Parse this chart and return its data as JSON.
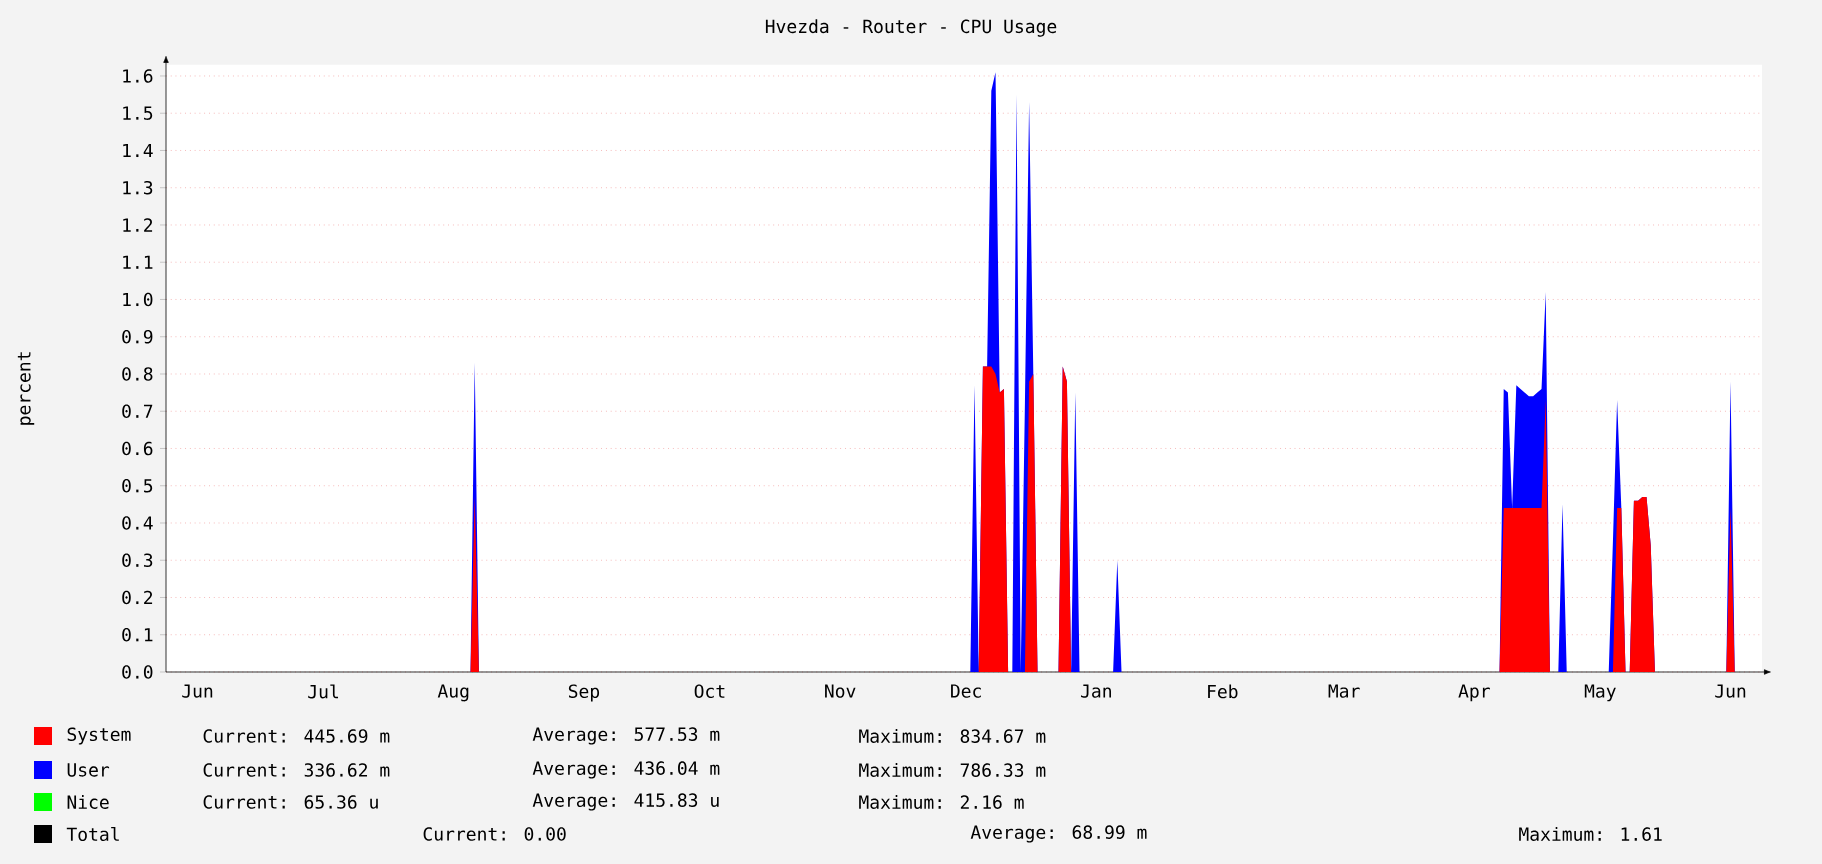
{
  "chart_data": {
    "type": "area",
    "title": "Hvezda - Router - CPU Usage",
    "ylabel": "percent",
    "categories": [
      null,
      null,
      null,
      null,
      null,
      null,
      null,
      "Jun",
      null,
      null,
      null,
      null,
      null,
      null,
      null,
      null,
      null,
      null,
      null,
      null,
      null,
      null,
      null,
      null,
      null,
      null,
      null,
      null,
      null,
      null,
      null,
      null,
      null,
      null,
      null,
      null,
      null,
      "Jul",
      null,
      null,
      null,
      null,
      null,
      null,
      null,
      null,
      null,
      null,
      null,
      null,
      null,
      null,
      null,
      null,
      null,
      null,
      null,
      null,
      null,
      null,
      null,
      null,
      null,
      null,
      null,
      null,
      null,
      null,
      "Aug",
      null,
      null,
      null,
      null,
      null,
      null,
      null,
      null,
      null,
      null,
      null,
      null,
      null,
      null,
      null,
      null,
      null,
      null,
      null,
      null,
      null,
      null,
      null,
      null,
      null,
      null,
      null,
      null,
      null,
      null,
      "Sep",
      null,
      null,
      null,
      null,
      null,
      null,
      null,
      null,
      null,
      null,
      null,
      null,
      null,
      null,
      null,
      null,
      null,
      null,
      null,
      null,
      null,
      null,
      null,
      null,
      null,
      null,
      null,
      null,
      null,
      "Oct",
      null,
      null,
      null,
      null,
      null,
      null,
      null,
      null,
      null,
      null,
      null,
      null,
      null,
      null,
      null,
      null,
      null,
      null,
      null,
      null,
      null,
      null,
      null,
      null,
      null,
      null,
      null,
      null,
      null,
      null,
      "Nov",
      null,
      null,
      null,
      null,
      null,
      null,
      null,
      null,
      null,
      null,
      null,
      null,
      null,
      null,
      null,
      null,
      null,
      null,
      null,
      null,
      null,
      null,
      null,
      null,
      null,
      null,
      null,
      null,
      null,
      "Dec",
      null,
      null,
      null,
      null,
      null,
      null,
      null,
      null,
      null,
      null,
      null,
      null,
      null,
      null,
      null,
      null,
      null,
      null,
      null,
      null,
      null,
      null,
      null,
      null,
      null,
      null,
      null,
      null,
      null,
      null,
      "Jan",
      null,
      null,
      null,
      null,
      null,
      null,
      null,
      null,
      null,
      null,
      null,
      null,
      null,
      null,
      null,
      null,
      null,
      null,
      null,
      null,
      null,
      null,
      null,
      null,
      null,
      null,
      null,
      null,
      null,
      "Feb",
      null,
      null,
      null,
      null,
      null,
      null,
      null,
      null,
      null,
      null,
      null,
      null,
      null,
      null,
      null,
      null,
      null,
      null,
      null,
      null,
      null,
      null,
      null,
      null,
      null,
      null,
      null,
      null,
      "Mar",
      null,
      null,
      null,
      null,
      null,
      null,
      null,
      null,
      null,
      null,
      null,
      null,
      null,
      null,
      null,
      null,
      null,
      null,
      null,
      null,
      null,
      null,
      null,
      null,
      null,
      null,
      null,
      null,
      null,
      null,
      "Apr",
      null,
      null,
      null,
      null,
      null,
      null,
      null,
      null,
      null,
      null,
      null,
      null,
      null,
      null,
      null,
      null,
      null,
      null,
      null,
      null,
      null,
      null,
      null,
      null,
      null,
      null,
      null,
      null,
      null,
      "May",
      null,
      null,
      null,
      null,
      null,
      null,
      null,
      null,
      null,
      null,
      null,
      null,
      null,
      null,
      null,
      null,
      null,
      null,
      null,
      null,
      null,
      null,
      null,
      null,
      null,
      null,
      null,
      null,
      null,
      null,
      "Jun",
      null,
      null,
      null,
      null,
      null,
      null,
      null
    ],
    "series": [
      {
        "name": "System",
        "color": "#ff0000",
        "values": [
          0,
          0,
          0,
          0,
          0,
          0,
          0,
          0,
          0,
          0,
          0,
          0,
          0,
          0,
          0,
          0,
          0,
          0,
          0,
          0,
          0,
          0,
          0,
          0,
          0,
          0,
          0,
          0,
          0,
          0,
          0,
          0,
          0,
          0,
          0,
          0,
          0,
          0,
          0,
          0,
          0,
          0,
          0,
          0,
          0,
          0,
          0,
          0,
          0,
          0,
          0,
          0,
          0,
          0,
          0,
          0,
          0,
          0,
          0,
          0,
          0,
          0,
          0,
          0,
          0,
          0,
          0,
          0,
          0,
          0,
          0,
          0,
          0,
          0.47,
          0,
          0,
          0,
          0,
          0,
          0,
          0,
          0,
          0,
          0,
          0,
          0,
          0,
          0,
          0,
          0,
          0,
          0,
          0,
          0,
          0,
          0,
          0,
          0,
          0,
          0,
          0,
          0,
          0,
          0,
          0,
          0,
          0,
          0,
          0,
          0,
          0,
          0,
          0,
          0,
          0,
          0,
          0,
          0,
          0,
          0,
          0,
          0,
          0,
          0,
          0,
          0,
          0,
          0,
          0,
          0,
          0,
          0,
          0,
          0,
          0,
          0,
          0,
          0,
          0,
          0,
          0,
          0,
          0,
          0,
          0,
          0,
          0,
          0,
          0,
          0,
          0,
          0,
          0,
          0,
          0,
          0,
          0,
          0,
          0,
          0,
          0,
          0,
          0,
          0,
          0,
          0,
          0,
          0,
          0,
          0,
          0,
          0,
          0,
          0,
          0,
          0,
          0,
          0,
          0,
          0,
          0,
          0,
          0,
          0,
          0,
          0,
          0,
          0,
          0,
          0,
          0,
          0,
          0,
          0,
          0.82,
          0.82,
          0.82,
          0.8,
          0.75,
          0.76,
          0,
          0,
          0,
          0,
          0,
          0.78,
          0.8,
          0,
          0,
          0,
          0,
          0,
          0,
          0.82,
          0.78,
          0,
          0,
          0,
          0,
          0,
          0,
          0,
          0,
          0,
          0,
          0,
          0,
          0,
          0,
          0,
          0,
          0,
          0,
          0,
          0,
          0,
          0,
          0,
          0,
          0,
          0,
          0,
          0,
          0,
          0,
          0,
          0,
          0,
          0,
          0,
          0,
          0,
          0,
          0,
          0,
          0,
          0,
          0,
          0,
          0,
          0,
          0,
          0,
          0,
          0,
          0,
          0,
          0,
          0,
          0,
          0,
          0,
          0,
          0,
          0,
          0,
          0,
          0,
          0,
          0,
          0,
          0,
          0,
          0,
          0,
          0,
          0,
          0,
          0,
          0,
          0,
          0,
          0,
          0,
          0,
          0,
          0,
          0,
          0,
          0,
          0,
          0,
          0,
          0,
          0,
          0,
          0,
          0,
          0,
          0,
          0,
          0,
          0,
          0,
          0,
          0,
          0,
          0,
          0.44,
          0.44,
          0.44,
          0.44,
          0.44,
          0.44,
          0.44,
          0.44,
          0.44,
          0.44,
          0.73,
          0,
          0,
          0,
          0,
          0,
          0,
          0,
          0,
          0,
          0,
          0,
          0,
          0,
          0,
          0,
          0,
          0.44,
          0.44,
          0,
          0,
          0.46,
          0.46,
          0.47,
          0.47,
          0.34,
          0,
          0,
          0,
          0,
          0,
          0,
          0,
          0,
          0,
          0,
          0,
          0,
          0,
          0,
          0,
          0,
          0,
          0,
          0.44,
          0,
          0,
          0,
          0,
          0,
          0,
          0
        ]
      },
      {
        "name": "User",
        "color": "#0000ff",
        "values": [
          0,
          0,
          0,
          0,
          0,
          0,
          0,
          0,
          0,
          0,
          0,
          0,
          0,
          0,
          0,
          0,
          0,
          0,
          0,
          0,
          0,
          0,
          0,
          0,
          0,
          0,
          0,
          0,
          0,
          0,
          0,
          0,
          0,
          0,
          0,
          0,
          0,
          0,
          0,
          0,
          0,
          0,
          0,
          0,
          0,
          0,
          0,
          0,
          0,
          0,
          0,
          0,
          0,
          0,
          0,
          0,
          0,
          0,
          0,
          0,
          0,
          0,
          0,
          0,
          0,
          0,
          0,
          0,
          0,
          0,
          0,
          0,
          0,
          0.36,
          0,
          0,
          0,
          0,
          0,
          0,
          0,
          0,
          0,
          0,
          0,
          0,
          0,
          0,
          0,
          0,
          0,
          0,
          0,
          0,
          0,
          0,
          0,
          0,
          0,
          0,
          0,
          0,
          0,
          0,
          0,
          0,
          0,
          0,
          0,
          0,
          0,
          0,
          0,
          0,
          0,
          0,
          0,
          0,
          0,
          0,
          0,
          0,
          0,
          0,
          0,
          0,
          0,
          0,
          0,
          0,
          0,
          0,
          0,
          0,
          0,
          0,
          0,
          0,
          0,
          0,
          0,
          0,
          0,
          0,
          0,
          0,
          0,
          0,
          0,
          0,
          0,
          0,
          0,
          0,
          0,
          0,
          0,
          0,
          0,
          0,
          0,
          0,
          0,
          0,
          0,
          0,
          0,
          0,
          0,
          0,
          0,
          0,
          0,
          0,
          0,
          0,
          0,
          0,
          0,
          0,
          0,
          0,
          0,
          0,
          0,
          0,
          0,
          0,
          0,
          0,
          0,
          0,
          0.77,
          0,
          0,
          0,
          0.74,
          0.81,
          0,
          0,
          0,
          0,
          1.55,
          0,
          0.72,
          0.75,
          0,
          0,
          0,
          0,
          0,
          0,
          0,
          0,
          0,
          0,
          0.75,
          0,
          0,
          0,
          0,
          0,
          0,
          0,
          0,
          0,
          0.3,
          0,
          0,
          0,
          0,
          0,
          0,
          0,
          0,
          0,
          0,
          0,
          0,
          0,
          0,
          0,
          0,
          0,
          0,
          0,
          0,
          0,
          0,
          0,
          0,
          0,
          0,
          0,
          0,
          0,
          0,
          0,
          0,
          0,
          0,
          0,
          0,
          0,
          0,
          0,
          0,
          0,
          0,
          0,
          0,
          0,
          0,
          0,
          0,
          0,
          0,
          0,
          0,
          0,
          0,
          0,
          0,
          0,
          0,
          0,
          0,
          0,
          0,
          0,
          0,
          0,
          0,
          0,
          0,
          0,
          0,
          0,
          0,
          0,
          0,
          0,
          0,
          0,
          0,
          0,
          0,
          0,
          0,
          0,
          0,
          0,
          0,
          0,
          0,
          0,
          0,
          0,
          0.32,
          0.31,
          0,
          0.33,
          0.32,
          0.31,
          0.3,
          0.3,
          0.31,
          0.32,
          0.29,
          0,
          0,
          0,
          0.45,
          0,
          0,
          0,
          0,
          0,
          0,
          0,
          0,
          0,
          0,
          0,
          0.35,
          0.29,
          0,
          0,
          0,
          0,
          0,
          0,
          0,
          0,
          0,
          0,
          0,
          0,
          0,
          0,
          0,
          0,
          0,
          0,
          0,
          0,
          0,
          0,
          0,
          0,
          0,
          0,
          0.34,
          0,
          0,
          0,
          0,
          0,
          0,
          0
        ]
      },
      {
        "name": "Nice",
        "color": "#00ff00",
        "values": [
          null,
          null,
          null,
          null,
          null,
          null,
          null,
          null,
          null,
          null,
          null,
          null,
          null,
          null,
          null,
          null,
          null,
          null,
          null,
          null,
          null,
          null,
          null,
          null,
          null,
          null,
          null,
          null,
          null,
          null,
          null,
          null,
          null,
          null,
          null,
          null,
          null,
          null,
          null,
          null,
          null,
          null,
          null,
          null,
          null,
          null,
          null,
          null,
          null,
          null,
          null,
          null,
          null,
          null,
          null,
          null,
          null,
          null,
          null,
          null,
          null,
          null,
          null,
          null,
          null,
          null,
          null,
          null,
          null,
          null,
          null,
          null,
          null,
          null,
          null,
          null,
          null,
          null,
          null,
          null,
          null,
          null,
          null,
          null,
          null,
          null,
          null,
          null,
          null,
          null,
          null,
          null,
          null,
          null,
          null,
          null,
          null,
          null,
          null,
          null,
          null,
          null,
          null,
          null,
          null,
          null,
          null,
          null,
          null,
          null,
          null,
          null,
          null,
          null,
          null,
          null,
          null,
          null,
          null,
          null,
          null,
          null,
          null,
          null,
          null,
          null,
          null,
          null,
          null,
          null,
          null,
          null,
          null,
          null,
          null,
          null,
          null,
          null,
          null,
          null,
          null,
          null,
          null,
          null,
          null,
          null,
          null,
          null,
          null,
          null,
          null,
          null,
          null,
          null,
          null,
          null,
          null,
          null,
          null,
          null,
          null,
          null,
          null,
          null,
          null,
          null,
          null,
          null,
          null,
          null,
          null,
          null,
          null,
          null,
          null,
          null,
          null,
          null,
          null,
          null,
          null,
          null,
          null,
          null,
          null,
          null,
          null,
          null,
          null,
          null,
          null,
          null,
          null,
          null,
          null,
          null,
          null,
          null,
          null,
          null,
          null,
          null,
          null,
          null,
          null,
          null,
          null,
          null,
          null,
          null,
          null,
          null,
          null,
          null,
          null,
          null,
          null,
          null,
          null,
          null,
          null,
          null,
          null,
          null,
          null,
          null,
          null,
          null,
          null,
          null,
          null,
          null,
          null,
          null,
          null,
          null,
          null,
          null,
          null,
          null,
          null,
          null,
          null,
          null,
          null,
          null,
          null,
          null,
          null,
          null,
          null,
          null,
          null,
          null,
          null,
          null,
          null,
          null,
          null,
          null,
          null,
          null,
          null,
          null,
          null,
          null,
          null,
          null,
          null,
          null,
          null,
          null,
          null,
          null,
          null,
          null,
          null,
          null,
          null,
          null,
          null,
          null,
          null,
          null,
          null,
          null,
          null,
          null,
          null,
          null,
          null,
          null,
          null,
          null,
          null,
          null,
          null,
          null,
          null,
          null,
          null,
          null,
          null,
          null,
          null,
          null,
          null,
          null,
          null,
          null,
          null,
          null,
          null,
          null,
          null,
          null,
          null,
          null,
          null,
          null,
          null,
          null,
          null,
          null,
          null,
          null,
          null,
          null,
          null,
          null,
          null,
          null,
          null,
          null,
          null,
          null,
          null,
          null,
          null,
          null,
          null,
          null,
          null,
          null,
          null,
          null,
          null,
          null,
          null,
          null,
          null,
          null,
          null,
          null,
          null,
          null,
          null,
          null,
          null,
          null,
          null,
          null,
          null,
          null,
          null,
          null,
          null,
          null,
          null,
          null,
          null,
          null,
          null,
          null,
          null,
          null,
          null,
          null,
          null,
          null
        ]
      },
      {
        "name": "Total",
        "type": "line",
        "color": "#000000",
        "values": [
          null,
          null,
          null,
          null,
          null,
          null,
          null,
          null,
          null,
          null,
          null,
          null,
          null,
          null,
          null,
          null,
          null,
          null,
          null,
          null,
          null,
          null,
          null,
          null,
          null,
          null,
          null,
          null,
          null,
          null,
          null,
          null,
          null,
          null,
          null,
          null,
          null,
          null,
          null,
          null,
          null,
          null,
          null,
          null,
          null,
          null,
          null,
          null,
          null,
          null,
          null,
          null,
          null,
          null,
          null,
          null,
          null,
          null,
          null,
          null,
          null,
          null,
          null,
          null,
          null,
          null,
          null,
          null,
          null,
          null,
          null,
          null,
          null,
          null,
          null,
          null,
          null,
          null,
          null,
          null,
          null,
          null,
          null,
          null,
          null,
          null,
          null,
          null,
          null,
          null,
          null,
          null,
          null,
          null,
          null,
          null,
          null,
          null,
          null,
          null,
          null,
          null,
          null,
          null,
          null,
          null,
          null,
          null,
          null,
          null,
          null,
          null,
          null,
          null,
          null,
          null,
          null,
          null,
          null,
          null,
          null,
          null,
          null,
          null,
          null,
          null,
          null,
          null,
          null,
          null,
          null,
          null,
          null,
          null,
          null,
          null,
          null,
          null,
          null,
          null,
          null,
          null,
          null,
          null,
          null,
          null,
          null,
          null,
          null,
          null,
          null,
          null,
          null,
          null,
          null,
          null,
          null,
          null,
          null,
          null,
          null,
          null,
          null,
          null,
          null,
          null,
          null,
          null,
          null,
          null,
          null,
          null,
          null,
          null,
          null,
          null,
          null,
          null,
          null,
          null,
          null,
          null,
          null,
          null,
          null,
          null,
          null,
          null,
          null,
          null,
          null,
          null,
          null,
          null,
          null,
          null,
          null,
          null,
          null,
          null,
          null,
          null,
          null,
          null,
          null,
          null,
          null,
          null,
          null,
          null,
          null,
          null,
          null,
          null,
          null,
          null,
          null,
          null,
          null,
          null,
          null,
          null,
          null,
          null,
          null,
          null,
          null,
          null,
          null,
          null,
          null,
          null,
          null,
          null,
          null,
          null,
          null,
          null,
          null,
          null,
          null,
          null,
          null,
          null,
          null,
          null,
          null,
          null,
          null,
          null,
          null,
          null,
          null,
          null,
          null,
          null,
          null,
          null,
          null,
          null,
          null,
          null,
          null,
          null,
          null,
          null,
          null,
          null,
          null,
          null,
          null,
          null,
          null,
          null,
          null,
          null,
          null,
          null,
          null,
          null,
          null,
          null,
          null,
          null,
          null,
          null,
          null,
          null,
          null,
          null,
          null,
          null,
          null,
          null,
          null,
          null,
          null,
          null,
          null,
          null,
          null,
          null,
          null,
          null,
          null,
          null,
          null,
          null,
          null,
          null,
          null,
          null,
          null,
          null,
          null,
          null,
          null,
          null,
          null,
          null,
          null,
          null,
          null,
          null,
          null,
          null,
          null,
          null,
          null,
          null,
          null,
          null,
          null,
          null,
          null,
          null,
          null,
          null,
          null,
          null,
          null,
          null,
          null,
          null,
          null,
          null,
          null,
          null,
          null,
          null,
          null,
          null,
          null,
          null,
          null,
          null,
          null,
          null,
          null,
          null,
          null,
          null,
          null,
          null,
          null,
          null,
          null,
          null,
          null,
          null,
          null,
          null,
          null,
          null,
          null,
          null,
          null,
          null,
          null,
          null
        ]
      }
    ],
    "ylim": [
      0,
      1.63
    ],
    "yticks": [
      {
        "value": 0,
        "label": "0.0"
      },
      {
        "value": 0.1,
        "label": "0.1"
      },
      {
        "value": 0.2,
        "label": "0.2"
      },
      {
        "value": 0.3,
        "label": "0.3"
      },
      {
        "value": 0.4,
        "label": "0.4"
      },
      {
        "value": 0.5,
        "label": "0.5"
      },
      {
        "value": 0.6,
        "label": "0.6"
      },
      {
        "value": 0.7,
        "label": "0.7"
      },
      {
        "value": 0.8,
        "label": "0.8"
      },
      {
        "value": 0.9,
        "label": "0.9"
      },
      {
        "value": 1.0,
        "label": "1.0"
      },
      {
        "value": 1.1,
        "label": "1.1"
      },
      {
        "value": 1.2,
        "label": "1.2"
      },
      {
        "value": 1.3,
        "label": "1.3"
      },
      {
        "value": 1.4,
        "label": "1.4"
      },
      {
        "value": 1.5,
        "label": "1.5"
      },
      {
        "value": 1.6,
        "label": "1.6"
      }
    ],
    "grid": "y",
    "legend": "bottom",
    "stacked": true,
    "annotations": [
      "Current: 445.69 m",
      "Average: 577.53 m",
      "Maximum: 834.67 m",
      "Current: 336.62 m",
      "Average: 436.04 m",
      "Maximum: 786.33 m",
      "Current: 65.36 u",
      "Average: 415.83 u",
      "Maximum: 2.16 m",
      "Current: 0.00",
      "Average: 68.99 m",
      "Maximum: 1.61"
    ]
  }
}
